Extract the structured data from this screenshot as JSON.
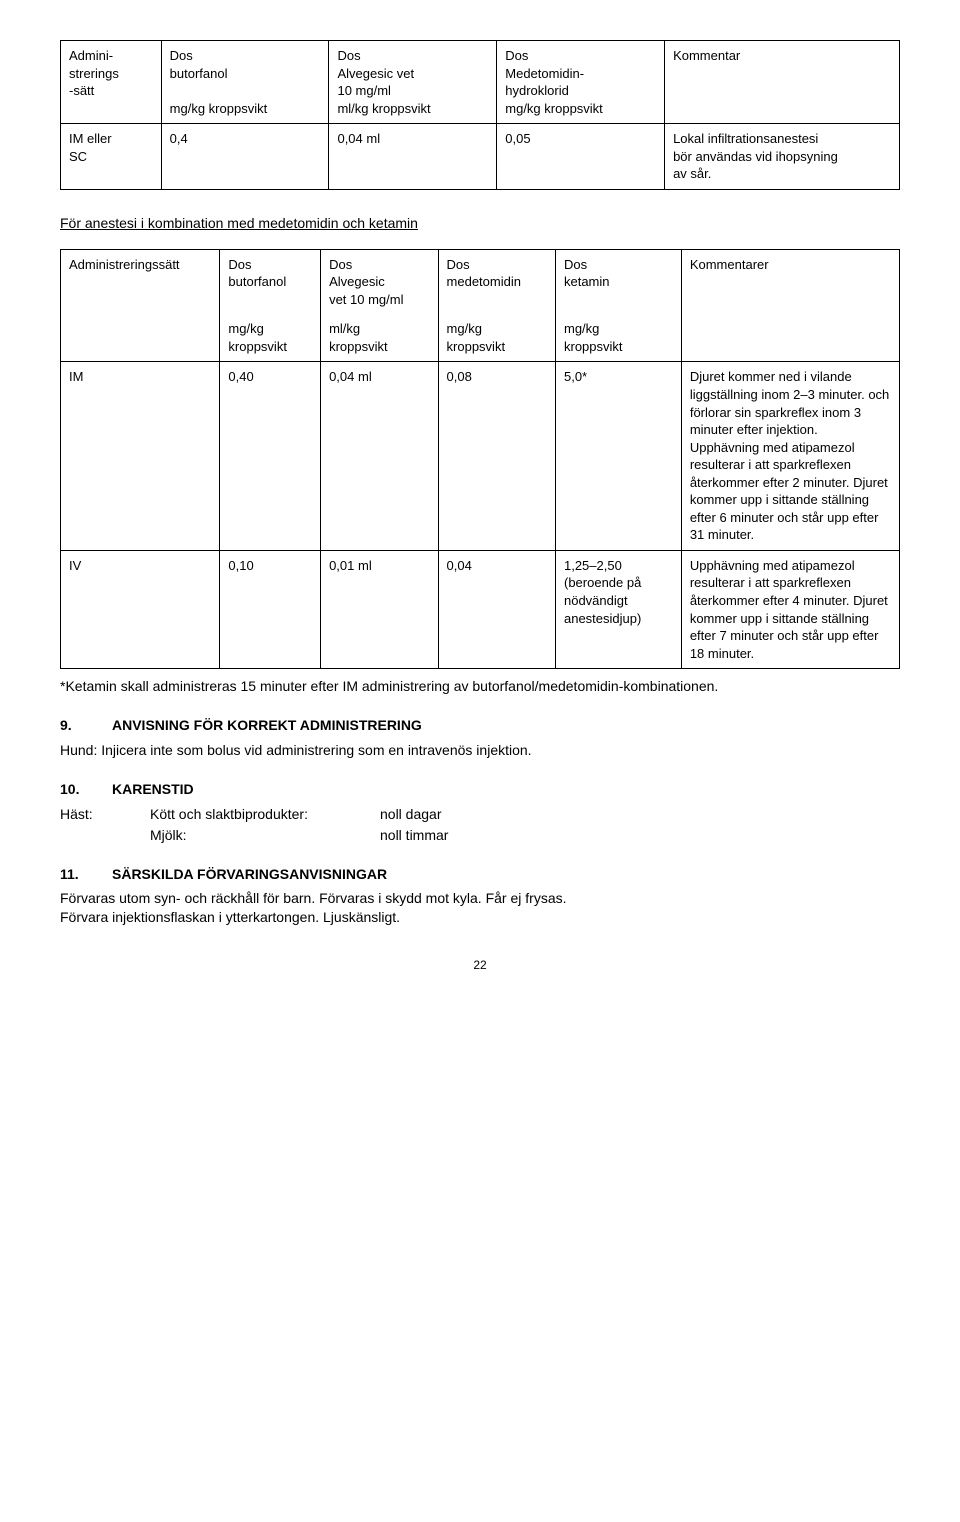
{
  "table1": {
    "headers": {
      "c1": "Admini-\nstrerings\n-sätt",
      "c2": "Dos\nbutorfanol\n\nmg/kg kroppsvikt",
      "c3": "Dos\nAlvegesic vet\n10 mg/ml\nml/kg kroppsvikt",
      "c4": "Dos\nMedetomidin-\nhydroklorid\nmg/kg kroppsvikt",
      "c5": "Kommentar"
    },
    "row": {
      "c1": "IM eller\nSC",
      "c2": "0,4",
      "c3": "0,04 ml",
      "c4": "0,05",
      "c5": "Lokal infiltrationsanestesi\nbör användas vid ihopsyning\nav sår."
    },
    "widths": [
      "12%",
      "20%",
      "20%",
      "20%",
      "28%"
    ]
  },
  "section_anestesi_title": "För anestesi i kombination med medetomidin och ketamin",
  "table2": {
    "headers": {
      "c1": "Administreringssätt",
      "c2a": "Dos\nbutorfanol",
      "c2b": "mg/kg\nkroppsvikt",
      "c3a": "Dos\nAlvegesic\nvet 10 mg/ml",
      "c3b": "ml/kg\nkroppsvikt",
      "c4a": "Dos\nmedetomidin",
      "c4b": "mg/kg\nkroppsvikt",
      "c5a": "Dos\nketamin",
      "c5b": "mg/kg\nkroppsvikt",
      "c6": "Kommentarer"
    },
    "rows": [
      {
        "c1": "IM",
        "c2": "0,40",
        "c3": "0,04 ml",
        "c4": "0,08",
        "c5": "5,0*",
        "c6": "Djuret kommer ned i vilande liggställning inom 2–3 minuter. och förlorar sin sparkreflex inom 3 minuter efter injektion.\nUpphävning med atipamezol resulterar i att sparkreflexen återkommer efter 2 minuter. Djuret kommer upp i sittande ställning efter 6 minuter och står upp efter 31 minuter."
      },
      {
        "c1": "IV",
        "c2": "0,10",
        "c3": "0,01 ml",
        "c4": "0,04",
        "c5": "1,25–2,50\n(beroende på nödvändigt anestesidjup)",
        "c6": "Upphävning med atipamezol resulterar i att sparkreflexen återkommer efter 4 minuter. Djuret kommer upp i sittande ställning efter 7 minuter  och står upp efter 18 minuter."
      }
    ],
    "widths": [
      "19%",
      "12%",
      "14%",
      "14%",
      "15%",
      "26%"
    ]
  },
  "footnote": "*Ketamin skall administreras 15 minuter efter IM administrering av butorfanol/medetomidin-kombinationen.",
  "s9": {
    "num": "9.",
    "title": "ANVISNING FÖR KORREKT ADMINISTRERING",
    "body": "Hund: Injicera inte som bolus vid administrering som en intravenös injektion."
  },
  "s10": {
    "num": "10.",
    "title": "KARENSTID",
    "r1c1": "Häst:",
    "r1c2": "Kött och slaktbiprodukter:",
    "r1c3": "noll dagar",
    "r2c2": "Mjölk:",
    "r2c3": "noll timmar"
  },
  "s11": {
    "num": "11.",
    "title": "SÄRSKILDA FÖRVARINGSANVISNINGAR",
    "body1": "Förvaras utom syn- och räckhåll för barn. Förvaras i skydd mot kyla. Får ej frysas.",
    "body2": "Förvara injektionsflaskan i ytterkartongen. Ljuskänsligt."
  },
  "page_number": "22"
}
